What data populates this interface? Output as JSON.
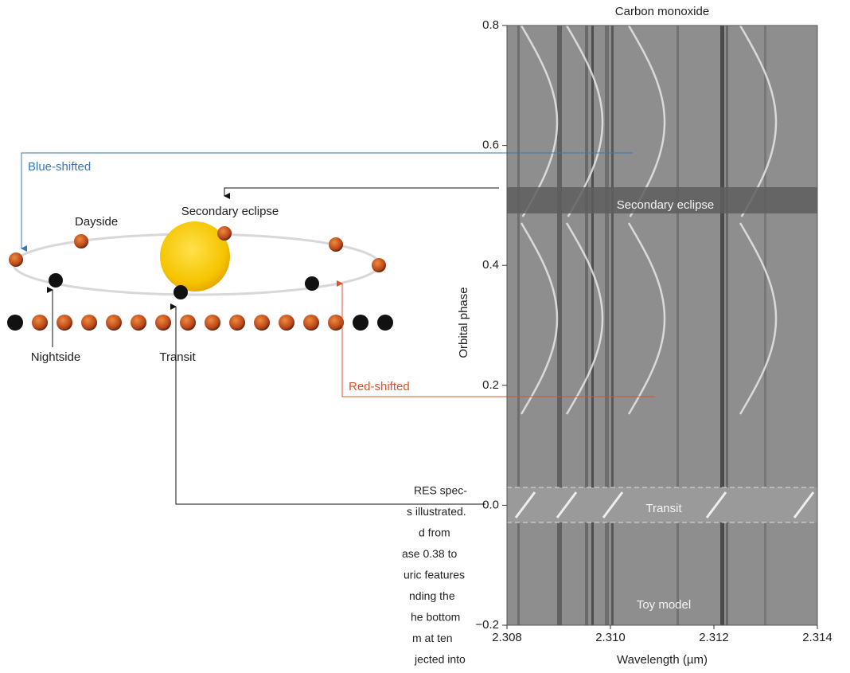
{
  "chart_data": {
    "type": "spectrogram",
    "title": "Carbon monoxide",
    "x_label": "Wavelength (µm)",
    "y_label": "Orbital phase",
    "xlim": [
      2.308,
      2.314
    ],
    "xticks": [
      2.308,
      {
        "value": 2.31,
        "label": "2.310"
      },
      2.312,
      2.314
    ],
    "ylim": [
      -0.2,
      0.8
    ],
    "yticks": [
      {
        "value": -0.2,
        "label": "−0.2"
      },
      {
        "value": 0,
        "label": "0.0"
      },
      0.2,
      0.4,
      0.6,
      0.8
    ],
    "annotations": [
      "Secondary eclipse",
      "Transit",
      "Toy model"
    ]
  },
  "diagram": {
    "blue_label": "Blue-shifted",
    "red_label": "Red-shifted",
    "dayside": "Dayside",
    "secondary_eclipse": "Secondary eclipse",
    "nightside": "Nightside",
    "transit": "Transit"
  },
  "caption": {
    "lines": [
      "RES spec-",
      "s illustrated.",
      "d from",
      "ase 0.38 to",
      "uric features",
      "nding the",
      "he bottom",
      "m at ten",
      "jected into"
    ]
  }
}
